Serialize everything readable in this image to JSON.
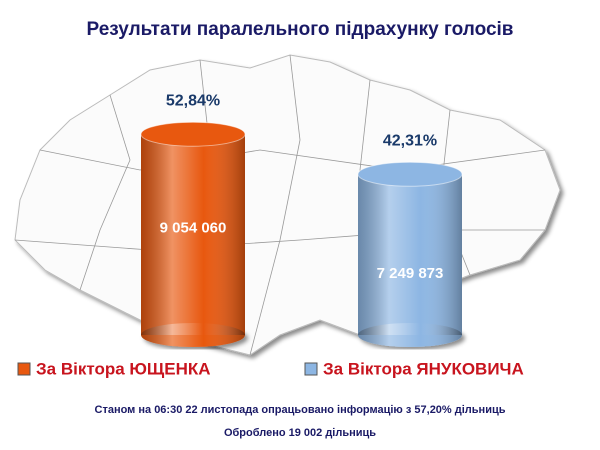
{
  "chart_data": {
    "type": "bar",
    "title": "Результати паралельного підрахунку голосів",
    "categories": [
      "За Віктора ЮЩЕНКА",
      "За Віктора ЯНУКОВИЧА"
    ],
    "values": [
      52.84,
      42.31
    ],
    "value_labels": [
      "52,84%",
      "42,31%"
    ],
    "counts": [
      9054060,
      7249873
    ],
    "count_labels": [
      "9 054 060",
      "7 249 873"
    ],
    "colors": [
      "#e8580f",
      "#8db6e3"
    ],
    "notes": [
      "Станом на 06:30 22 листопада опрацьовано інформацію з 57,20% дільниць",
      "Оброблено 19 002 дільниць"
    ]
  }
}
